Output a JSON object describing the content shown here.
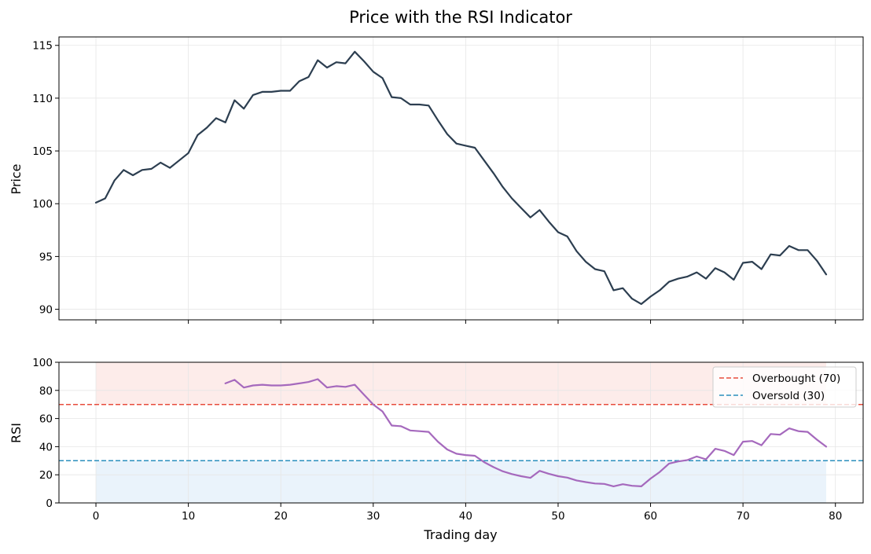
{
  "chart_data": [
    {
      "type": "line",
      "title": "Price with the RSI Indicator",
      "xlabel": "",
      "ylabel": "Price",
      "xlim": [
        -4,
        83
      ],
      "ylim": [
        89,
        115.8
      ],
      "yticks": [
        90,
        95,
        100,
        105,
        110,
        115
      ],
      "xticks": [
        0,
        10,
        20,
        30,
        40,
        50,
        60,
        70,
        80
      ],
      "grid": true,
      "series": [
        {
          "name": "",
          "color": "#2c3e50",
          "x": [
            0,
            1,
            2,
            3,
            4,
            5,
            6,
            7,
            8,
            9,
            10,
            11,
            12,
            13,
            14,
            15,
            16,
            17,
            18,
            19,
            20,
            21,
            22,
            23,
            24,
            25,
            26,
            27,
            28,
            29,
            30,
            31,
            32,
            33,
            34,
            35,
            36,
            37,
            38,
            39,
            40,
            41,
            42,
            43,
            44,
            45,
            46,
            47,
            48,
            49,
            50,
            51,
            52,
            53,
            54,
            55,
            56,
            57,
            58,
            59,
            60,
            61,
            62,
            63,
            64,
            65,
            66,
            67,
            68,
            69,
            70,
            71,
            72,
            73,
            74,
            75,
            76,
            77,
            78,
            79
          ],
          "values": [
            100.1,
            100.5,
            102.2,
            103.2,
            102.7,
            103.2,
            103.3,
            103.9,
            103.4,
            104.1,
            104.8,
            106.5,
            107.2,
            108.1,
            107.7,
            109.8,
            109.0,
            110.3,
            110.6,
            110.6,
            110.7,
            110.7,
            111.6,
            112.0,
            113.6,
            112.9,
            113.4,
            113.3,
            114.4,
            113.5,
            112.5,
            111.9,
            110.1,
            110.0,
            109.4,
            109.4,
            109.3,
            107.9,
            106.6,
            105.7,
            105.5,
            105.3,
            104.1,
            102.9,
            101.6,
            100.5,
            99.6,
            98.7,
            99.4,
            98.3,
            97.3,
            96.9,
            95.5,
            94.5,
            93.8,
            93.6,
            91.8,
            92.0,
            91.0,
            90.5,
            91.2,
            91.8,
            92.6,
            92.9,
            93.1,
            93.5,
            92.9,
            93.9,
            93.5,
            92.8,
            94.4,
            94.5,
            93.8,
            95.2,
            95.1,
            96.0,
            95.6,
            95.6,
            94.6,
            93.3
          ]
        }
      ]
    },
    {
      "type": "line",
      "title": "",
      "xlabel": "Trading day",
      "ylabel": "RSI",
      "xlim": [
        -4,
        83
      ],
      "ylim": [
        0,
        100
      ],
      "yticks": [
        0,
        20,
        40,
        60,
        80,
        100
      ],
      "xticks": [
        0,
        10,
        20,
        30,
        40,
        50,
        60,
        70,
        80
      ],
      "grid": true,
      "legend_position": "top-right",
      "shaded_zones": [
        {
          "from": 70,
          "to": 100,
          "x_range": [
            0,
            79
          ],
          "color": "#fdecea"
        },
        {
          "from": 0,
          "to": 30,
          "x_range": [
            0,
            79
          ],
          "color": "#eaf3fb"
        }
      ],
      "reference_lines": [
        {
          "name": "Overbought (70)",
          "y": 70,
          "color": "#e74c3c"
        },
        {
          "name": "Oversold (30)",
          "y": 30,
          "color": "#2a8fbd"
        }
      ],
      "series": [
        {
          "name": "",
          "color": "#a569bd",
          "x": [
            14,
            15,
            16,
            17,
            18,
            19,
            20,
            21,
            22,
            23,
            24,
            25,
            26,
            27,
            28,
            29,
            30,
            31,
            32,
            33,
            34,
            35,
            36,
            37,
            38,
            39,
            40,
            41,
            42,
            43,
            44,
            45,
            46,
            47,
            48,
            49,
            50,
            51,
            52,
            53,
            54,
            55,
            56,
            57,
            58,
            59,
            60,
            61,
            62,
            63,
            64,
            65,
            66,
            67,
            68,
            69,
            70,
            71,
            72,
            73,
            74,
            75,
            76,
            77,
            78,
            79
          ],
          "values": [
            85,
            87.5,
            82,
            83.5,
            84,
            83.5,
            83.5,
            84,
            85,
            86,
            88,
            82,
            83,
            82.5,
            84,
            77,
            70,
            65,
            55,
            54.5,
            51.5,
            51,
            50.5,
            43.5,
            38,
            35,
            34,
            33.5,
            29,
            25.5,
            22.5,
            20.5,
            19,
            17.8,
            22.8,
            20.7,
            19,
            18,
            16,
            14.8,
            13.8,
            13.5,
            11.8,
            13.3,
            12.2,
            11.8,
            17.3,
            22,
            28,
            29.5,
            30.5,
            33,
            31,
            38.5,
            37,
            34,
            43.5,
            44,
            41,
            49,
            48.5,
            53,
            51,
            50.5,
            45,
            40
          ]
        }
      ]
    }
  ]
}
